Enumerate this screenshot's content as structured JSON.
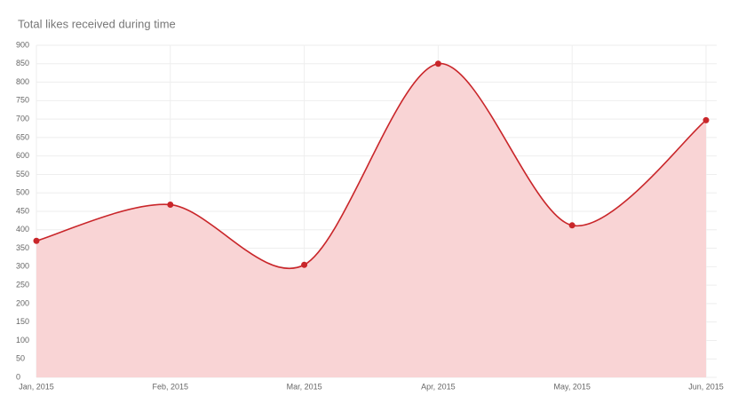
{
  "chart_data": {
    "type": "area",
    "title": "Total likes received during time",
    "categories": [
      "Jan, 2015",
      "Feb, 2015",
      "Mar, 2015",
      "Apr, 2015",
      "May, 2015",
      "Jun, 2015"
    ],
    "values": [
      370,
      468,
      305,
      850,
      412,
      697
    ],
    "color": "#c9262a",
    "fill_color": "#f9d4d5",
    "ylim": [
      0,
      900
    ],
    "yticks": [
      0,
      50,
      100,
      150,
      200,
      250,
      300,
      350,
      400,
      450,
      500,
      550,
      600,
      650,
      700,
      750,
      800,
      850,
      900
    ],
    "grid": true
  }
}
